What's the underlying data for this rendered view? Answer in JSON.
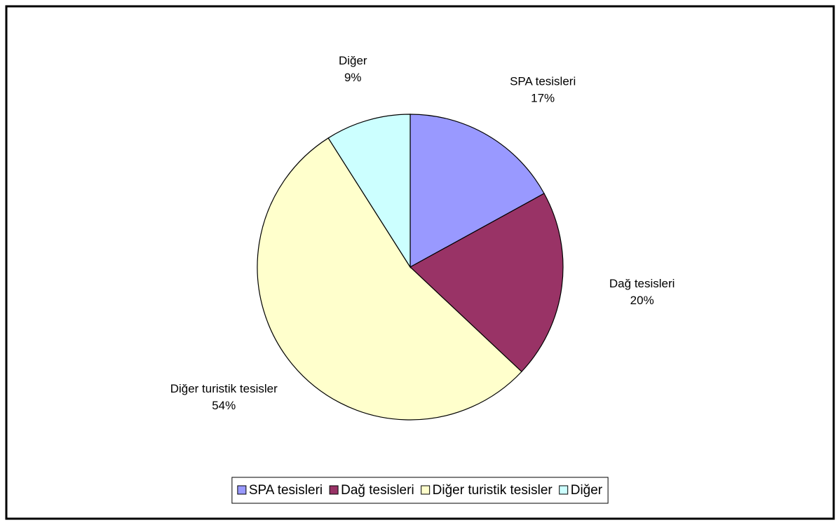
{
  "chart_data": {
    "type": "pie",
    "categories": [
      "SPA tesisleri",
      "Dağ tesisleri",
      "Diğer turistik tesisler",
      "Diğer"
    ],
    "values": [
      17,
      20,
      54,
      9
    ],
    "value_labels": [
      "17%",
      "20%",
      "54%",
      "9%"
    ],
    "colors": [
      "#9999ff",
      "#993366",
      "#ffffcc",
      "#ccffff"
    ],
    "legend": "bottom"
  }
}
